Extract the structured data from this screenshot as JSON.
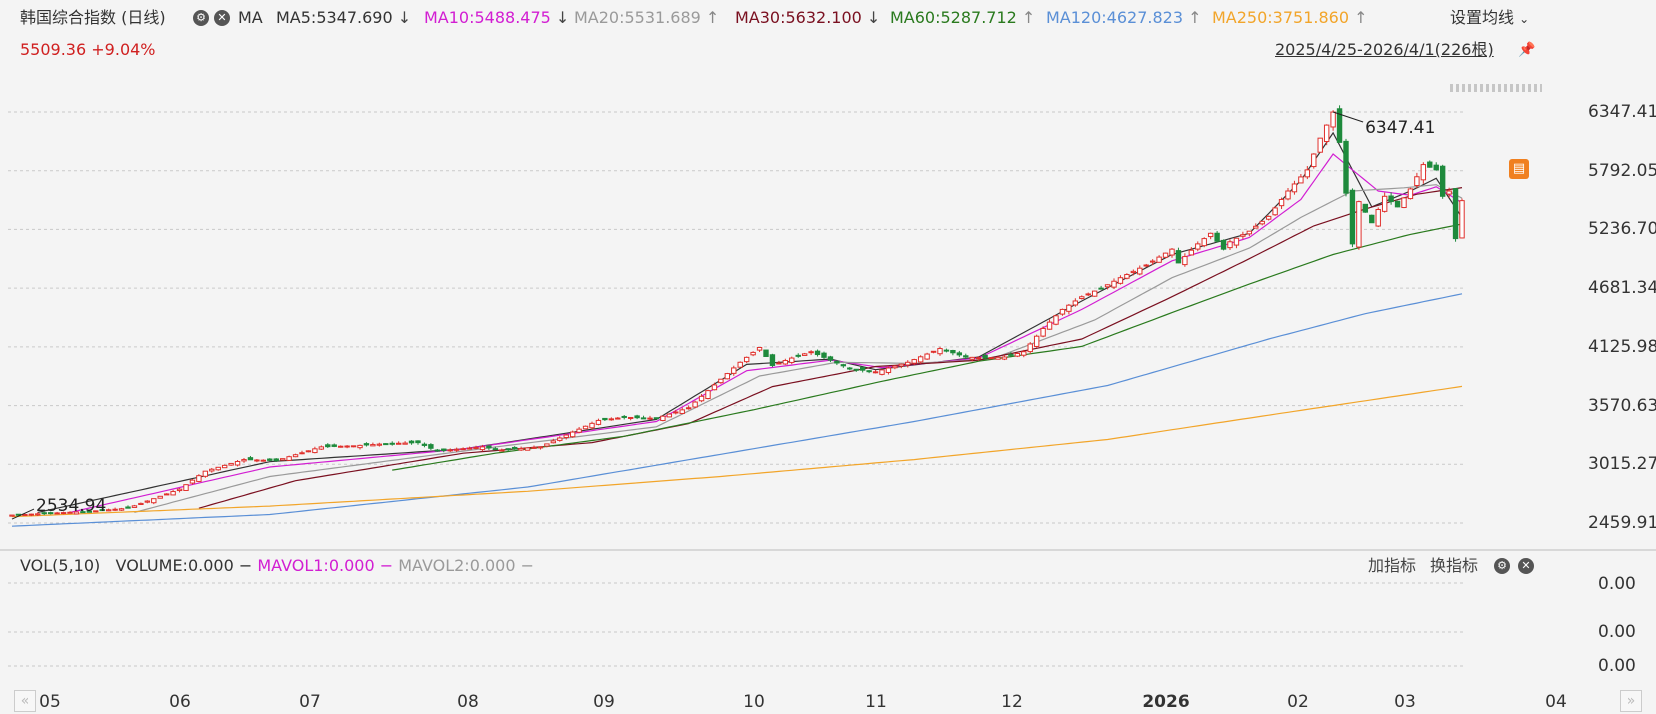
{
  "header": {
    "title": "韩国综合指数 (日线)",
    "indicator_name": "MA",
    "last_price": "5509.36",
    "change_pct": "+9.04%",
    "settings_label": "设置均线",
    "range_label": "2025/4/25-2026/4/1(226根)",
    "ma_values": [
      {
        "label": "MA5:5347.690",
        "arrow": "↓",
        "color": "#333333"
      },
      {
        "label": "MA10:5488.475",
        "arrow": "↓",
        "color": "#d21ed2"
      },
      {
        "label": "MA20:5531.689",
        "arrow": "↑",
        "color": "#9a9a9a"
      },
      {
        "label": "MA30:5632.100",
        "arrow": "↓",
        "color": "#7a1020"
      },
      {
        "label": "MA60:5287.712",
        "arrow": "↑",
        "color": "#2a7a1e"
      },
      {
        "label": "MA120:4627.823",
        "arrow": "↑",
        "color": "#5a8fd6"
      },
      {
        "label": "MA250:3751.860",
        "arrow": "↑",
        "color": "#f2a52a"
      }
    ]
  },
  "volume_panel": {
    "label": "VOL(5,10)",
    "volume": "VOLUME:0.000",
    "mavol1": "MAVOL1:0.000",
    "mavol2": "MAVOL2:0.000",
    "add_indicator": "加指标",
    "switch_indicator": "换指标",
    "y_ticks": [
      "0.00",
      "0.00",
      "0.00"
    ]
  },
  "chart_data": {
    "type": "candlestick",
    "title": "韩国综合指数 (日线)",
    "y_ticks": [
      "6347.41",
      "5792.05",
      "5236.70",
      "4681.34",
      "4125.98",
      "3570.63",
      "3015.27",
      "2459.91"
    ],
    "ylim": [
      2350,
      6400
    ],
    "x_ticks": [
      "05",
      "06",
      "07",
      "08",
      "09",
      "10",
      "11",
      "12",
      "2026",
      "02",
      "03",
      "04"
    ],
    "annotations": [
      {
        "text": "6347.41",
        "type": "max"
      },
      {
        "text": "2534.94",
        "type": "min"
      }
    ],
    "close_path": [
      [
        0,
        2535
      ],
      [
        12,
        2570
      ],
      [
        18,
        2600
      ],
      [
        26,
        2780
      ],
      [
        30,
        2950
      ],
      [
        36,
        3060
      ],
      [
        41,
        3050
      ],
      [
        48,
        3180
      ],
      [
        53,
        3190
      ],
      [
        58,
        3210
      ],
      [
        63,
        3220
      ],
      [
        66,
        3140
      ],
      [
        73,
        3180
      ],
      [
        76,
        3150
      ],
      [
        82,
        3180
      ],
      [
        87,
        3320
      ],
      [
        91,
        3430
      ],
      [
        95,
        3460
      ],
      [
        100,
        3450
      ],
      [
        105,
        3550
      ],
      [
        110,
        3820
      ],
      [
        113,
        3980
      ],
      [
        116,
        4120
      ],
      [
        118,
        3950
      ],
      [
        121,
        4020
      ],
      [
        124,
        4080
      ],
      [
        127,
        4000
      ],
      [
        130,
        3920
      ],
      [
        134,
        3890
      ],
      [
        139,
        3980
      ],
      [
        144,
        4110
      ],
      [
        148,
        4030
      ],
      [
        151,
        4020
      ],
      [
        154,
        4030
      ],
      [
        157,
        4080
      ],
      [
        160,
        4300
      ],
      [
        163,
        4480
      ],
      [
        166,
        4600
      ],
      [
        169,
        4680
      ],
      [
        172,
        4780
      ],
      [
        176,
        4900
      ],
      [
        180,
        5050
      ],
      [
        181,
        4920
      ],
      [
        184,
        5100
      ],
      [
        186,
        5200
      ],
      [
        188,
        5050
      ],
      [
        189,
        5120
      ],
      [
        192,
        5220
      ],
      [
        195,
        5360
      ],
      [
        198,
        5600
      ],
      [
        201,
        5800
      ],
      [
        203,
        6100
      ],
      [
        205,
        6347
      ],
      [
        206,
        6060
      ],
      [
        208,
        5100
      ],
      [
        209,
        5500
      ],
      [
        211,
        5300
      ],
      [
        213,
        5550
      ],
      [
        215,
        5450
      ],
      [
        217,
        5620
      ],
      [
        219,
        5850
      ],
      [
        221,
        5800
      ],
      [
        222,
        5550
      ],
      [
        223,
        5600
      ],
      [
        224,
        5150
      ],
      [
        225,
        5509
      ]
    ],
    "series": [
      {
        "name": "MA5",
        "color": "#333333",
        "points": [
          [
            4,
            2560
          ],
          [
            40,
            3040
          ],
          [
            70,
            3160
          ],
          [
            100,
            3440
          ],
          [
            114,
            3960
          ],
          [
            127,
            4010
          ],
          [
            134,
            3910
          ],
          [
            150,
            4030
          ],
          [
            166,
            4560
          ],
          [
            180,
            5000
          ],
          [
            192,
            5200
          ],
          [
            200,
            5700
          ],
          [
            205,
            6150
          ],
          [
            211,
            5450
          ],
          [
            217,
            5600
          ],
          [
            221,
            5720
          ],
          [
            225,
            5348
          ]
        ]
      },
      {
        "name": "MA10",
        "color": "#d21ed2",
        "points": [
          [
            9,
            2560
          ],
          [
            40,
            2990
          ],
          [
            70,
            3160
          ],
          [
            100,
            3420
          ],
          [
            114,
            3900
          ],
          [
            127,
            4000
          ],
          [
            135,
            3930
          ],
          [
            150,
            4020
          ],
          [
            166,
            4480
          ],
          [
            180,
            4940
          ],
          [
            192,
            5160
          ],
          [
            200,
            5520
          ],
          [
            205,
            5950
          ],
          [
            212,
            5600
          ],
          [
            217,
            5560
          ],
          [
            221,
            5640
          ],
          [
            225,
            5488
          ]
        ]
      },
      {
        "name": "MA20",
        "color": "#9a9a9a",
        "points": [
          [
            19,
            2560
          ],
          [
            40,
            2900
          ],
          [
            70,
            3140
          ],
          [
            100,
            3370
          ],
          [
            116,
            3850
          ],
          [
            128,
            3980
          ],
          [
            140,
            3970
          ],
          [
            152,
            4010
          ],
          [
            168,
            4380
          ],
          [
            180,
            4780
          ],
          [
            192,
            5060
          ],
          [
            200,
            5350
          ],
          [
            208,
            5600
          ],
          [
            216,
            5630
          ],
          [
            221,
            5660
          ],
          [
            225,
            5532
          ]
        ]
      },
      {
        "name": "MA30",
        "color": "#7a1020",
        "points": [
          [
            29,
            2600
          ],
          [
            44,
            2860
          ],
          [
            70,
            3120
          ],
          [
            90,
            3220
          ],
          [
            105,
            3400
          ],
          [
            118,
            3750
          ],
          [
            134,
            3940
          ],
          [
            150,
            4000
          ],
          [
            166,
            4200
          ],
          [
            180,
            4600
          ],
          [
            192,
            4960
          ],
          [
            202,
            5270
          ],
          [
            210,
            5430
          ],
          [
            218,
            5570
          ],
          [
            225,
            5632
          ]
        ]
      },
      {
        "name": "MA60",
        "color": "#2a7a1e",
        "points": [
          [
            59,
            2960
          ],
          [
            75,
            3120
          ],
          [
            95,
            3280
          ],
          [
            115,
            3530
          ],
          [
            135,
            3800
          ],
          [
            150,
            3990
          ],
          [
            166,
            4130
          ],
          [
            180,
            4450
          ],
          [
            192,
            4720
          ],
          [
            205,
            5000
          ],
          [
            217,
            5190
          ],
          [
            225,
            5288
          ]
        ]
      },
      {
        "name": "MA120",
        "color": "#5a8fd6",
        "points": [
          [
            0,
            2430
          ],
          [
            40,
            2540
          ],
          [
            80,
            2800
          ],
          [
            110,
            3110
          ],
          [
            140,
            3420
          ],
          [
            170,
            3760
          ],
          [
            195,
            4200
          ],
          [
            210,
            4440
          ],
          [
            225,
            4628
          ]
        ]
      },
      {
        "name": "MA250",
        "color": "#f2a52a",
        "points": [
          [
            0,
            2520
          ],
          [
            40,
            2620
          ],
          [
            80,
            2760
          ],
          [
            110,
            2900
          ],
          [
            140,
            3060
          ],
          [
            170,
            3250
          ],
          [
            195,
            3480
          ],
          [
            225,
            3752
          ]
        ]
      }
    ]
  },
  "colors": {
    "up": "#e0302c",
    "down": "#1e8a3c",
    "grid": "#c9c9c9",
    "text": "#333333",
    "accent": "#f08020"
  },
  "icons": [
    "gear-icon",
    "close-icon",
    "chevron-down-icon",
    "pin-icon",
    "note-icon",
    "nav-left-icon",
    "nav-right-icon"
  ]
}
